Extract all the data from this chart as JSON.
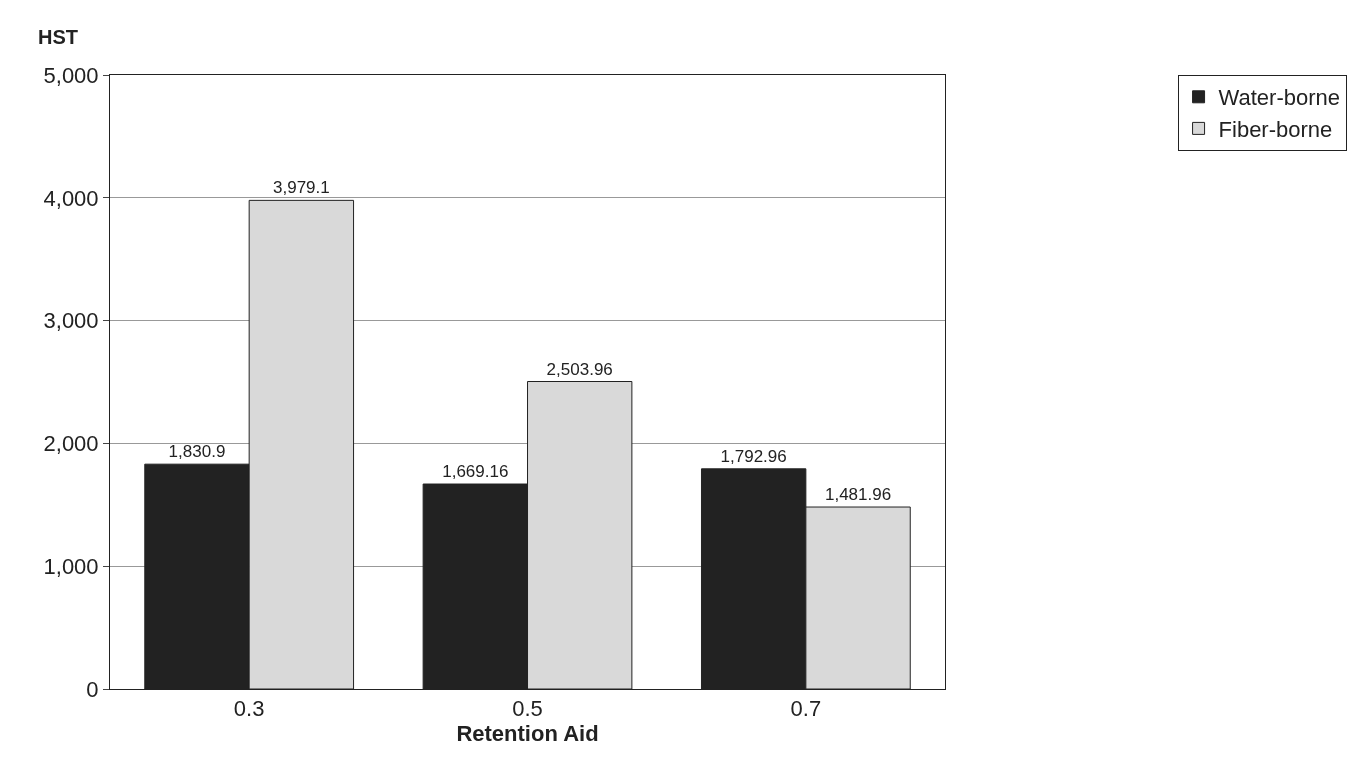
{
  "chart_data": {
    "type": "bar",
    "xlabel": "Retention Aid",
    "ylabel": "HST",
    "categories": [
      "0.3",
      "0.5",
      "0.7"
    ],
    "series": [
      {
        "name": "Water-borne",
        "color": "#222222",
        "values": [
          1830.9,
          1669.16,
          1792.96
        ],
        "value_labels": [
          "1,830.9",
          "1,669.16",
          "1,792.96"
        ]
      },
      {
        "name": "Fiber-borne",
        "color": "#d9d9d9",
        "values": [
          3979.1,
          2503.96,
          1481.96
        ],
        "value_labels": [
          "3,979.1",
          "2,503.96",
          "1,481.96"
        ]
      }
    ],
    "ylim": [
      0,
      5000
    ],
    "yticks": [
      0,
      {
        "value": 1000,
        "label": "1,000"
      },
      {
        "value": 2000,
        "label": "2,000"
      },
      {
        "value": 3000,
        "label": "3,000"
      },
      {
        "value": 4000,
        "label": "4,000"
      },
      {
        "value": 5000,
        "label": "5,000"
      }
    ],
    "grid": "y",
    "legend": "top right"
  }
}
